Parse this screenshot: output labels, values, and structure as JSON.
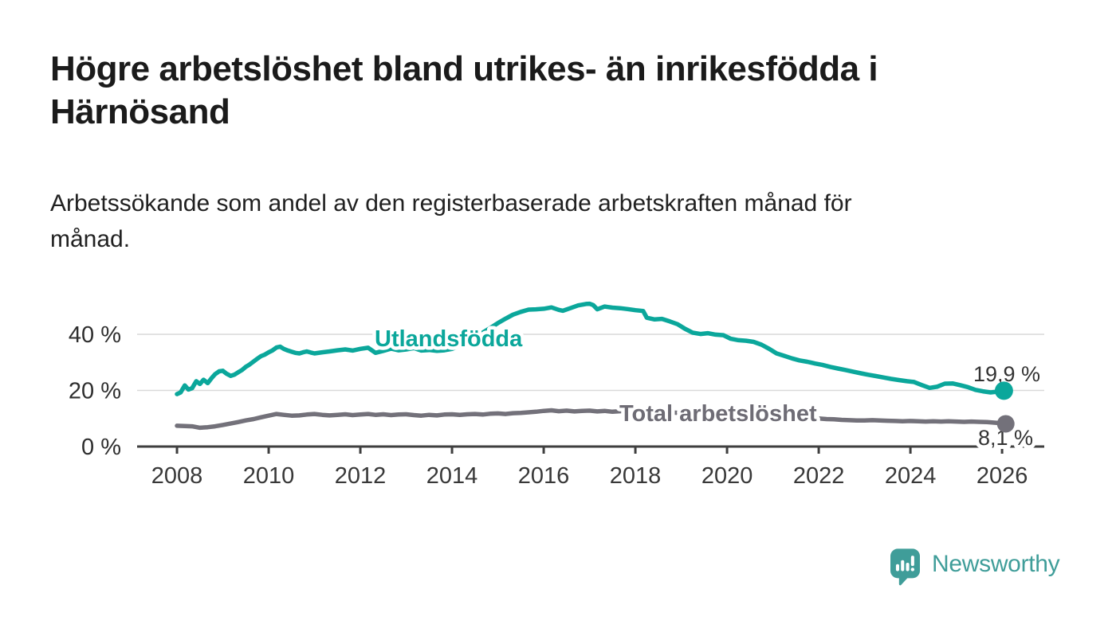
{
  "header": {
    "title": "Högre arbetslöshet bland utrikes- än inrikesfödda i Härnösand",
    "title_lines": [
      "Högre arbetslöshet bland utrikes- än inrikesfödda i",
      "Härnösand"
    ],
    "subtitle": "Arbetssökande som andel av den registerbaserade arbetskraften månad för månad.",
    "subtitle_lines": [
      "Arbetssökande som andel av den registerbaserade arbetskraften månad för",
      "månad."
    ]
  },
  "branding": {
    "logo_text": "Newsworthy",
    "logo_icon": "newsworthy-speech-bubble-chart-icon",
    "logo_color": "#3f9d99"
  },
  "colors": {
    "accent_teal": "#0ba79b",
    "line_gray": "#73717a",
    "label_gray": "#6e6c75",
    "axis": "#3f3f3f",
    "gridline": "#d9d9d9",
    "tick_text": "#383838",
    "value_text": "#333333"
  },
  "chart_data": {
    "type": "line",
    "unit": "percent",
    "title": "Högre arbetslöshet bland utrikes- än inrikesfödda i Härnösand",
    "xlabel": "",
    "ylabel": "",
    "grid": "horizontal",
    "legend_position": "inline-labels",
    "x_axis": {
      "min": 2007.13,
      "max": 2026.92,
      "ticks": [
        2008,
        2010,
        2012,
        2014,
        2016,
        2018,
        2020,
        2022,
        2024,
        2026
      ]
    },
    "y_axis": {
      "min": 0,
      "max": 58,
      "ticks": [
        {
          "value": 0,
          "label": "0 %"
        },
        {
          "value": 20,
          "label": "20 %"
        },
        {
          "value": 40,
          "label": "40 %"
        }
      ]
    },
    "series": [
      {
        "name": "Utlandsfödda",
        "color": "#0ba79b",
        "end_value": 19.9,
        "end_label": "19,9 %",
        "points": [
          [
            2008.0,
            18.7
          ],
          [
            2008.08,
            19.3
          ],
          [
            2008.17,
            21.8
          ],
          [
            2008.25,
            20.3
          ],
          [
            2008.33,
            20.8
          ],
          [
            2008.42,
            23.3
          ],
          [
            2008.5,
            22.3
          ],
          [
            2008.58,
            23.8
          ],
          [
            2008.67,
            22.6
          ],
          [
            2008.75,
            24.3
          ],
          [
            2008.83,
            25.8
          ],
          [
            2008.92,
            26.8
          ],
          [
            2009.0,
            27.0
          ],
          [
            2009.08,
            26.0
          ],
          [
            2009.17,
            25.2
          ],
          [
            2009.25,
            25.6
          ],
          [
            2009.33,
            26.4
          ],
          [
            2009.42,
            27.3
          ],
          [
            2009.5,
            28.4
          ],
          [
            2009.58,
            29.2
          ],
          [
            2009.67,
            30.3
          ],
          [
            2009.75,
            31.3
          ],
          [
            2009.83,
            32.2
          ],
          [
            2009.92,
            32.8
          ],
          [
            2010.0,
            33.6
          ],
          [
            2010.08,
            34.2
          ],
          [
            2010.17,
            35.3
          ],
          [
            2010.25,
            35.6
          ],
          [
            2010.33,
            34.8
          ],
          [
            2010.42,
            34.2
          ],
          [
            2010.5,
            33.8
          ],
          [
            2010.58,
            33.4
          ],
          [
            2010.67,
            33.2
          ],
          [
            2010.75,
            33.6
          ],
          [
            2010.83,
            33.9
          ],
          [
            2010.92,
            33.5
          ],
          [
            2011.0,
            33.2
          ],
          [
            2011.17,
            33.6
          ],
          [
            2011.33,
            33.9
          ],
          [
            2011.5,
            34.3
          ],
          [
            2011.67,
            34.6
          ],
          [
            2011.83,
            34.2
          ],
          [
            2012.0,
            34.8
          ],
          [
            2012.17,
            35.2
          ],
          [
            2012.33,
            33.4
          ],
          [
            2012.5,
            34.1
          ],
          [
            2012.67,
            34.9
          ],
          [
            2012.83,
            34.3
          ],
          [
            2013.0,
            34.6
          ],
          [
            2013.17,
            35.1
          ],
          [
            2013.33,
            34.2
          ],
          [
            2013.5,
            34.4
          ],
          [
            2013.67,
            34.1
          ],
          [
            2013.83,
            34.3
          ],
          [
            2014.0,
            34.8
          ],
          [
            2014.17,
            35.9
          ],
          [
            2014.33,
            37.4
          ],
          [
            2014.5,
            39.1
          ],
          [
            2014.67,
            40.6
          ],
          [
            2014.83,
            42.2
          ],
          [
            2015.0,
            44.0
          ],
          [
            2015.17,
            45.6
          ],
          [
            2015.33,
            47.0
          ],
          [
            2015.5,
            48.0
          ],
          [
            2015.67,
            48.8
          ],
          [
            2015.83,
            48.9
          ],
          [
            2016.0,
            49.1
          ],
          [
            2016.17,
            49.6
          ],
          [
            2016.33,
            48.7
          ],
          [
            2016.42,
            48.4
          ],
          [
            2016.58,
            49.3
          ],
          [
            2016.75,
            50.3
          ],
          [
            2016.92,
            50.8
          ],
          [
            2017.0,
            50.9
          ],
          [
            2017.08,
            50.4
          ],
          [
            2017.17,
            48.9
          ],
          [
            2017.33,
            49.9
          ],
          [
            2017.5,
            49.5
          ],
          [
            2017.67,
            49.3
          ],
          [
            2017.83,
            49.0
          ],
          [
            2018.0,
            48.6
          ],
          [
            2018.17,
            48.3
          ],
          [
            2018.25,
            45.9
          ],
          [
            2018.42,
            45.3
          ],
          [
            2018.58,
            45.5
          ],
          [
            2018.75,
            44.6
          ],
          [
            2018.92,
            43.6
          ],
          [
            2019.08,
            42.0
          ],
          [
            2019.25,
            40.6
          ],
          [
            2019.42,
            40.1
          ],
          [
            2019.58,
            40.4
          ],
          [
            2019.75,
            39.9
          ],
          [
            2019.92,
            39.7
          ],
          [
            2020.08,
            38.4
          ],
          [
            2020.25,
            37.9
          ],
          [
            2020.42,
            37.7
          ],
          [
            2020.58,
            37.3
          ],
          [
            2020.75,
            36.3
          ],
          [
            2020.92,
            34.8
          ],
          [
            2021.08,
            33.2
          ],
          [
            2021.25,
            32.3
          ],
          [
            2021.42,
            31.4
          ],
          [
            2021.58,
            30.7
          ],
          [
            2021.75,
            30.2
          ],
          [
            2021.92,
            29.6
          ],
          [
            2022.08,
            29.1
          ],
          [
            2022.25,
            28.4
          ],
          [
            2022.42,
            27.8
          ],
          [
            2022.58,
            27.3
          ],
          [
            2022.75,
            26.7
          ],
          [
            2022.92,
            26.1
          ],
          [
            2023.08,
            25.6
          ],
          [
            2023.25,
            25.1
          ],
          [
            2023.42,
            24.6
          ],
          [
            2023.58,
            24.1
          ],
          [
            2023.75,
            23.7
          ],
          [
            2023.92,
            23.3
          ],
          [
            2024.08,
            23.0
          ],
          [
            2024.25,
            21.9
          ],
          [
            2024.42,
            20.9
          ],
          [
            2024.58,
            21.3
          ],
          [
            2024.75,
            22.4
          ],
          [
            2024.92,
            22.5
          ],
          [
            2025.08,
            21.9
          ],
          [
            2025.25,
            21.2
          ],
          [
            2025.42,
            20.2
          ],
          [
            2025.58,
            19.7
          ],
          [
            2025.75,
            19.3
          ],
          [
            2025.92,
            19.6
          ],
          [
            2026.04,
            19.9
          ]
        ]
      },
      {
        "name": "Total arbetslöshet",
        "color": "#73717a",
        "end_value": 8.1,
        "end_label": "8,1 %",
        "points": [
          [
            2008.0,
            7.4
          ],
          [
            2008.17,
            7.3
          ],
          [
            2008.33,
            7.2
          ],
          [
            2008.5,
            6.7
          ],
          [
            2008.67,
            6.9
          ],
          [
            2008.83,
            7.2
          ],
          [
            2009.0,
            7.7
          ],
          [
            2009.17,
            8.2
          ],
          [
            2009.33,
            8.7
          ],
          [
            2009.5,
            9.3
          ],
          [
            2009.67,
            9.8
          ],
          [
            2009.83,
            10.4
          ],
          [
            2010.0,
            11.0
          ],
          [
            2010.17,
            11.6
          ],
          [
            2010.33,
            11.3
          ],
          [
            2010.5,
            11.0
          ],
          [
            2010.67,
            11.1
          ],
          [
            2010.83,
            11.4
          ],
          [
            2011.0,
            11.6
          ],
          [
            2011.17,
            11.3
          ],
          [
            2011.33,
            11.1
          ],
          [
            2011.5,
            11.3
          ],
          [
            2011.67,
            11.5
          ],
          [
            2011.83,
            11.2
          ],
          [
            2012.0,
            11.4
          ],
          [
            2012.17,
            11.6
          ],
          [
            2012.33,
            11.3
          ],
          [
            2012.5,
            11.5
          ],
          [
            2012.67,
            11.2
          ],
          [
            2012.83,
            11.4
          ],
          [
            2013.0,
            11.5
          ],
          [
            2013.17,
            11.2
          ],
          [
            2013.33,
            11.0
          ],
          [
            2013.5,
            11.3
          ],
          [
            2013.67,
            11.1
          ],
          [
            2013.83,
            11.4
          ],
          [
            2014.0,
            11.5
          ],
          [
            2014.17,
            11.3
          ],
          [
            2014.33,
            11.5
          ],
          [
            2014.5,
            11.6
          ],
          [
            2014.67,
            11.4
          ],
          [
            2014.83,
            11.7
          ],
          [
            2015.0,
            11.8
          ],
          [
            2015.17,
            11.6
          ],
          [
            2015.33,
            11.9
          ],
          [
            2015.5,
            12.0
          ],
          [
            2015.67,
            12.2
          ],
          [
            2015.83,
            12.4
          ],
          [
            2016.0,
            12.7
          ],
          [
            2016.17,
            12.9
          ],
          [
            2016.33,
            12.6
          ],
          [
            2016.5,
            12.8
          ],
          [
            2016.67,
            12.5
          ],
          [
            2016.83,
            12.7
          ],
          [
            2017.0,
            12.8
          ],
          [
            2017.17,
            12.5
          ],
          [
            2017.33,
            12.7
          ],
          [
            2017.5,
            12.4
          ],
          [
            2017.67,
            12.6
          ],
          [
            2017.83,
            12.8
          ],
          [
            2018.0,
            12.6
          ],
          [
            2018.17,
            12.3
          ],
          [
            2018.33,
            12.5
          ],
          [
            2018.5,
            12.2
          ],
          [
            2018.67,
            12.4
          ],
          [
            2018.83,
            12.1
          ],
          [
            2019.0,
            11.9
          ],
          [
            2019.17,
            11.7
          ],
          [
            2019.33,
            11.5
          ],
          [
            2019.5,
            11.6
          ],
          [
            2019.67,
            11.4
          ],
          [
            2019.83,
            11.2
          ],
          [
            2020.0,
            11.5
          ],
          [
            2020.17,
            11.8
          ],
          [
            2020.33,
            12.0
          ],
          [
            2020.5,
            11.8
          ],
          [
            2020.67,
            11.6
          ],
          [
            2020.83,
            11.4
          ],
          [
            2021.0,
            11.1
          ],
          [
            2021.17,
            10.9
          ],
          [
            2021.33,
            10.7
          ],
          [
            2021.5,
            10.5
          ],
          [
            2021.67,
            10.3
          ],
          [
            2021.83,
            10.1
          ],
          [
            2022.0,
            10.0
          ],
          [
            2022.17,
            9.8
          ],
          [
            2022.33,
            9.7
          ],
          [
            2022.5,
            9.5
          ],
          [
            2022.67,
            9.4
          ],
          [
            2022.83,
            9.3
          ],
          [
            2023.0,
            9.3
          ],
          [
            2023.17,
            9.4
          ],
          [
            2023.33,
            9.3
          ],
          [
            2023.5,
            9.2
          ],
          [
            2023.67,
            9.1
          ],
          [
            2023.83,
            9.0
          ],
          [
            2024.0,
            9.1
          ],
          [
            2024.17,
            9.0
          ],
          [
            2024.33,
            8.9
          ],
          [
            2024.5,
            9.0
          ],
          [
            2024.67,
            8.9
          ],
          [
            2024.83,
            9.0
          ],
          [
            2025.0,
            8.9
          ],
          [
            2025.17,
            8.8
          ],
          [
            2025.33,
            8.9
          ],
          [
            2025.5,
            8.8
          ],
          [
            2025.67,
            8.7
          ],
          [
            2025.83,
            8.5
          ],
          [
            2026.0,
            8.3
          ],
          [
            2026.08,
            8.1
          ]
        ]
      }
    ]
  }
}
